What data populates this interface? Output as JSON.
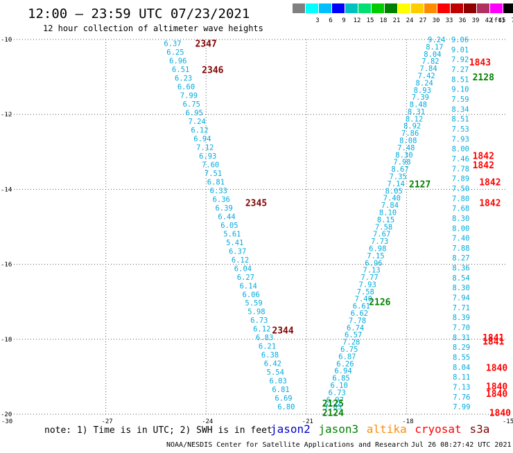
{
  "header": {
    "title": "12:00 — 23:59 UTC 07/23/2021",
    "subtitle": "12 hour collection of altimeter wave heights"
  },
  "legend": {
    "unit": "(ft)",
    "bins": [
      {
        "label": "",
        "color": "#808080"
      },
      {
        "label": "3",
        "color": "#00ffff"
      },
      {
        "label": "6",
        "color": "#00bfff"
      },
      {
        "label": "9",
        "color": "#0000ff"
      },
      {
        "label": "12",
        "color": "#00c0c0"
      },
      {
        "label": "15",
        "color": "#00e070"
      },
      {
        "label": "18",
        "color": "#00cc00"
      },
      {
        "label": "21",
        "color": "#008000"
      },
      {
        "label": "24",
        "color": "#ffff00"
      },
      {
        "label": "27",
        "color": "#ffcc00"
      },
      {
        "label": "30",
        "color": "#ff8c00"
      },
      {
        "label": "33",
        "color": "#ff0000"
      },
      {
        "label": "36",
        "color": "#c00000"
      },
      {
        "label": "39",
        "color": "#900000"
      },
      {
        "label": "42",
        "color": "#b03060"
      },
      {
        "label": "45",
        "color": "#ff00ff"
      },
      {
        "label": "70",
        "color": "#000000"
      }
    ]
  },
  "map": {
    "x_range": [
      -30,
      -15
    ],
    "y_range": [
      -20,
      -10
    ],
    "x_ticks": [
      -30,
      -27,
      -24,
      -21,
      -18,
      -15
    ],
    "y_ticks": [
      -10,
      -12,
      -14,
      -16,
      -18,
      -20
    ],
    "x_tick_labels": [
      "-30",
      "-27",
      "-24",
      "-21",
      "-18",
      "-15"
    ],
    "y_tick_labels": [
      "-10",
      "-12",
      "-14",
      "-16",
      "-18",
      "-20"
    ],
    "wave_color": "#00aadd",
    "track_a": {
      "lon_start": -25.0,
      "lat_start": -10.1,
      "lon_end": -21.6,
      "lat_end": -19.8,
      "values": [
        "6.37",
        "6.25",
        "6.96",
        "6.51",
        "6.23",
        "6.60",
        "7.99",
        "6.75",
        "6.95",
        "7.24",
        "6.12",
        "6.94",
        "7.12",
        "6.93",
        "7.60",
        "7.51",
        "6.81",
        "6.33",
        "6.36",
        "6.39",
        "6.44",
        "6.05",
        "5.61",
        "5.41",
        "6.37",
        "6.12",
        "6.04",
        "6.27",
        "6.14",
        "6.06",
        "5.59",
        "5.98",
        "6.73",
        "6.12",
        "6.83",
        "6.21",
        "6.38",
        "6.42",
        "5.54",
        "6.03",
        "6.81",
        "6.69",
        "6.80"
      ]
    },
    "track_b": {
      "lon_start": -17.1,
      "lat_start": -10.0,
      "lon_end": -20.2,
      "lat_end": -19.8,
      "values": [
        "9.24",
        "8.17",
        "8.04",
        "7.82",
        "7.84",
        "7.42",
        "8.24",
        "8.93",
        "7.39",
        "8.48",
        "8.31",
        "8.12",
        "8.92",
        "7.86",
        "8.08",
        "7.48",
        "8.30",
        "7.98",
        "8.67",
        "7.35",
        "7.14",
        "8.05",
        "7.40",
        "7.84",
        "8.10",
        "8.15",
        "7.58",
        "7.67",
        "7.73",
        "6.98",
        "7.15",
        "6.96",
        "7.13",
        "7.77",
        "7.93",
        "7.58",
        "7.40",
        "6.61",
        "6.62",
        "7.78",
        "6.74",
        "6.57",
        "7.28",
        "6.75",
        "6.87",
        "6.26",
        "6.94",
        "6.85",
        "6.10",
        "6.73",
        "6.97",
        "7.05"
      ]
    },
    "track_c": {
      "lon_start": -16.4,
      "lat_start": -10.0,
      "lon_end": -16.35,
      "lat_end": -19.8,
      "values": [
        "9.06",
        "9.01",
        "7.92",
        "7.27",
        "8.51",
        "9.10",
        "7.59",
        "8.34",
        "8.51",
        "7.53",
        "7.93",
        "8.00",
        "7.46",
        "7.78",
        "7.89",
        "7.50",
        "7.80",
        "7.68",
        "8.30",
        "8.00",
        "7.40",
        "7.88",
        "8.27",
        "8.36",
        "8.54",
        "8.30",
        "7.94",
        "7.71",
        "8.39",
        "7.70",
        "8.31",
        "8.29",
        "8.55",
        "8.04",
        "8.11",
        "7.13",
        "7.76",
        "7.99"
      ]
    },
    "pass_labels": [
      {
        "text": "2347",
        "lon": -24.0,
        "lat": -10.1,
        "color": "#800000"
      },
      {
        "text": "2346",
        "lon": -23.8,
        "lat": -10.8,
        "color": "#800000"
      },
      {
        "text": "2345",
        "lon": -22.5,
        "lat": -14.35,
        "color": "#800000"
      },
      {
        "text": "2344",
        "lon": -21.7,
        "lat": -17.75,
        "color": "#800000"
      },
      {
        "text": "1843",
        "lon": -15.8,
        "lat": -10.6,
        "color": "#ff0000"
      },
      {
        "text": "2128",
        "lon": -15.7,
        "lat": -11.0,
        "color": "#008000"
      },
      {
        "text": "1842",
        "lon": -15.7,
        "lat": -13.1,
        "color": "#ff0000"
      },
      {
        "text": "1842",
        "lon": -15.7,
        "lat": -13.35,
        "color": "#ff0000"
      },
      {
        "text": "1842",
        "lon": -15.5,
        "lat": -13.8,
        "color": "#ff0000"
      },
      {
        "text": "1842",
        "lon": -15.5,
        "lat": -14.35,
        "color": "#ff0000"
      },
      {
        "text": "2127",
        "lon": -17.6,
        "lat": -13.85,
        "color": "#008000"
      },
      {
        "text": "2126",
        "lon": -18.8,
        "lat": -17.0,
        "color": "#008000"
      },
      {
        "text": "1841",
        "lon": -15.4,
        "lat": -17.95,
        "color": "#ff0000"
      },
      {
        "text": "1841",
        "lon": -15.4,
        "lat": -18.05,
        "color": "#ff0000"
      },
      {
        "text": "1840",
        "lon": -15.3,
        "lat": -18.75,
        "color": "#ff0000"
      },
      {
        "text": "1840",
        "lon": -15.3,
        "lat": -19.25,
        "color": "#ff0000"
      },
      {
        "text": "1840",
        "lon": -15.3,
        "lat": -19.45,
        "color": "#ff0000"
      },
      {
        "text": "1840",
        "lon": -15.2,
        "lat": -19.95,
        "color": "#ff0000"
      },
      {
        "text": "2125",
        "lon": -20.2,
        "lat": -19.7,
        "color": "#008000"
      },
      {
        "text": "2124",
        "lon": -20.2,
        "lat": -19.95,
        "color": "#008000"
      }
    ]
  },
  "footer": {
    "note": "note: 1) Time is in UTC; 2) SWH is in feet",
    "satellites": [
      {
        "name": "jason2",
        "color": "#0000cc"
      },
      {
        "name": "jason3",
        "color": "#008000"
      },
      {
        "name": "altika",
        "color": "#ff8c00"
      },
      {
        "name": "cryosat",
        "color": "#ff0000"
      },
      {
        "name": "s3a",
        "color": "#800000"
      }
    ],
    "credit": "NOAA/NESDIS Center for Satellite Applications and Research",
    "timestamp": "Jul 26 08:27:42 UTC 2021"
  }
}
